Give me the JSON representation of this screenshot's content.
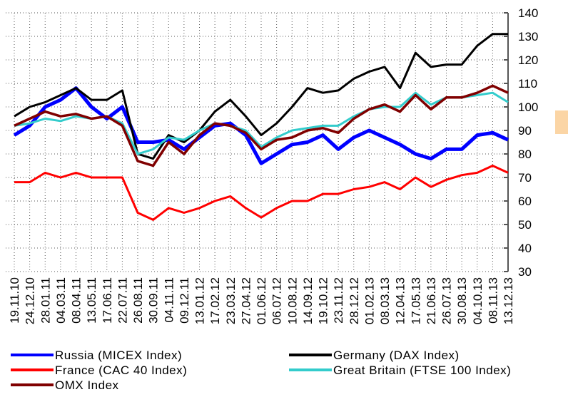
{
  "chart_data": {
    "type": "line",
    "categories": [
      "19.11.10",
      "24.12.10",
      "28.01.11",
      "04.03.11",
      "08.04.11",
      "13.05.11",
      "17.06.11",
      "22.07.11",
      "26.08.11",
      "30.09.11",
      "04.11.11",
      "09.12.11",
      "13.01.12",
      "17.02.12",
      "23.03.12",
      "27.04.12",
      "01.06.12",
      "06.07.12",
      "10.08.12",
      "14.09.12",
      "19.10.12",
      "23.11.12",
      "28.12.12",
      "01.02.13",
      "08.03.13",
      "12.04.13",
      "17.05.13",
      "21.06.13",
      "26.07.13",
      "30.08.13",
      "04.10.13",
      "08.11.13",
      "13.12.13"
    ],
    "series": [
      {
        "name": "Russia (MICEX Index)",
        "color": "#0000ff",
        "values": [
          88,
          92,
          100,
          103,
          108,
          100,
          95,
          100,
          85,
          85,
          86,
          82,
          87,
          92,
          93,
          88,
          76,
          80,
          84,
          85,
          88,
          82,
          87,
          90,
          87,
          84,
          80,
          78,
          82,
          82,
          88,
          89,
          86
        ]
      },
      {
        "name": "Germany (DAX Index)",
        "color": "#000000",
        "values": [
          96,
          100,
          102,
          105,
          108,
          103,
          103,
          107,
          80,
          78,
          88,
          85,
          90,
          98,
          103,
          96,
          88,
          93,
          100,
          108,
          106,
          107,
          112,
          115,
          117,
          108,
          123,
          117,
          118,
          118,
          126,
          131,
          131
        ]
      },
      {
        "name": "France (CAC 40 Index)",
        "color": "#ff0000",
        "values": [
          68,
          68,
          72,
          70,
          72,
          70,
          70,
          70,
          55,
          52,
          57,
          55,
          57,
          60,
          62,
          57,
          53,
          57,
          60,
          60,
          63,
          63,
          65,
          66,
          68,
          65,
          70,
          66,
          69,
          71,
          72,
          75,
          72
        ]
      },
      {
        "name": "Great Britain (FTSE 100 Index)",
        "color": "#33cccc",
        "values": [
          92,
          93,
          95,
          94,
          96,
          95,
          96,
          93,
          80,
          82,
          87,
          86,
          90,
          93,
          92,
          90,
          83,
          87,
          90,
          91,
          92,
          92,
          96,
          99,
          100,
          100,
          106,
          101,
          104,
          104,
          105,
          106,
          102
        ]
      },
      {
        "name": "OMX Index",
        "color": "#800000",
        "values": [
          92,
          95,
          98,
          96,
          97,
          95,
          96,
          92,
          77,
          75,
          85,
          80,
          88,
          93,
          92,
          89,
          82,
          86,
          87,
          90,
          91,
          89,
          95,
          99,
          101,
          98,
          105,
          99,
          104,
          104,
          106,
          109,
          106
        ]
      }
    ],
    "ylim": [
      30,
      140
    ],
    "yticks": [
      30,
      40,
      50,
      60,
      70,
      80,
      90,
      100,
      110,
      120,
      130,
      140
    ],
    "grid": true
  }
}
